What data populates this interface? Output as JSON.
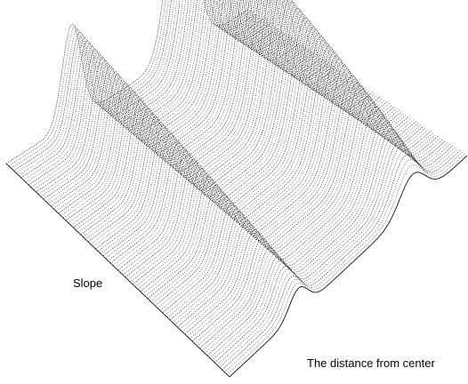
{
  "chart_data": {
    "type": "surface",
    "title": "",
    "xlabel": "Slope",
    "ylabel": "The distance from center",
    "zlabel": "",
    "grid": false,
    "legend": "none",
    "surface": "two ridges rising from a flat plane; the ridge along the far edge is taller than the ridge on the near side",
    "line_color": "#000000",
    "background_color": "#ffffff"
  }
}
